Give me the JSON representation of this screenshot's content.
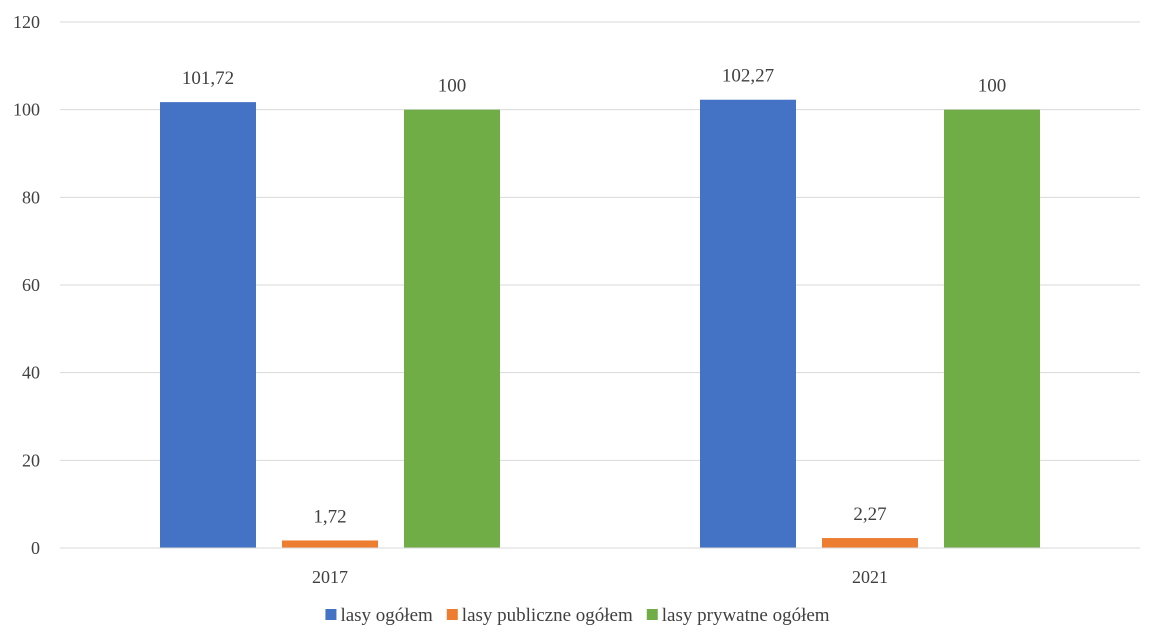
{
  "chart_data": {
    "type": "bar",
    "title": "",
    "xlabel": "",
    "ylabel": "",
    "categories": [
      "2017",
      "2021"
    ],
    "series": [
      {
        "name": "lasy ogółem",
        "color": "#4472C4",
        "values": [
          101.72,
          102.27
        ],
        "labels": [
          "101,72",
          "102,27"
        ]
      },
      {
        "name": "lasy publiczne ogółem",
        "color": "#ED7D31",
        "values": [
          1.72,
          2.27
        ],
        "labels": [
          "1,72",
          "2,27"
        ]
      },
      {
        "name": "lasy prywatne ogółem",
        "color": "#70AD47",
        "values": [
          100,
          100
        ],
        "labels": [
          "100",
          "100"
        ]
      }
    ],
    "ylim": [
      0,
      120
    ],
    "yticks": [
      "0",
      "20",
      "40",
      "60",
      "80",
      "100",
      "120"
    ],
    "grid": true,
    "legend_position": "bottom"
  }
}
